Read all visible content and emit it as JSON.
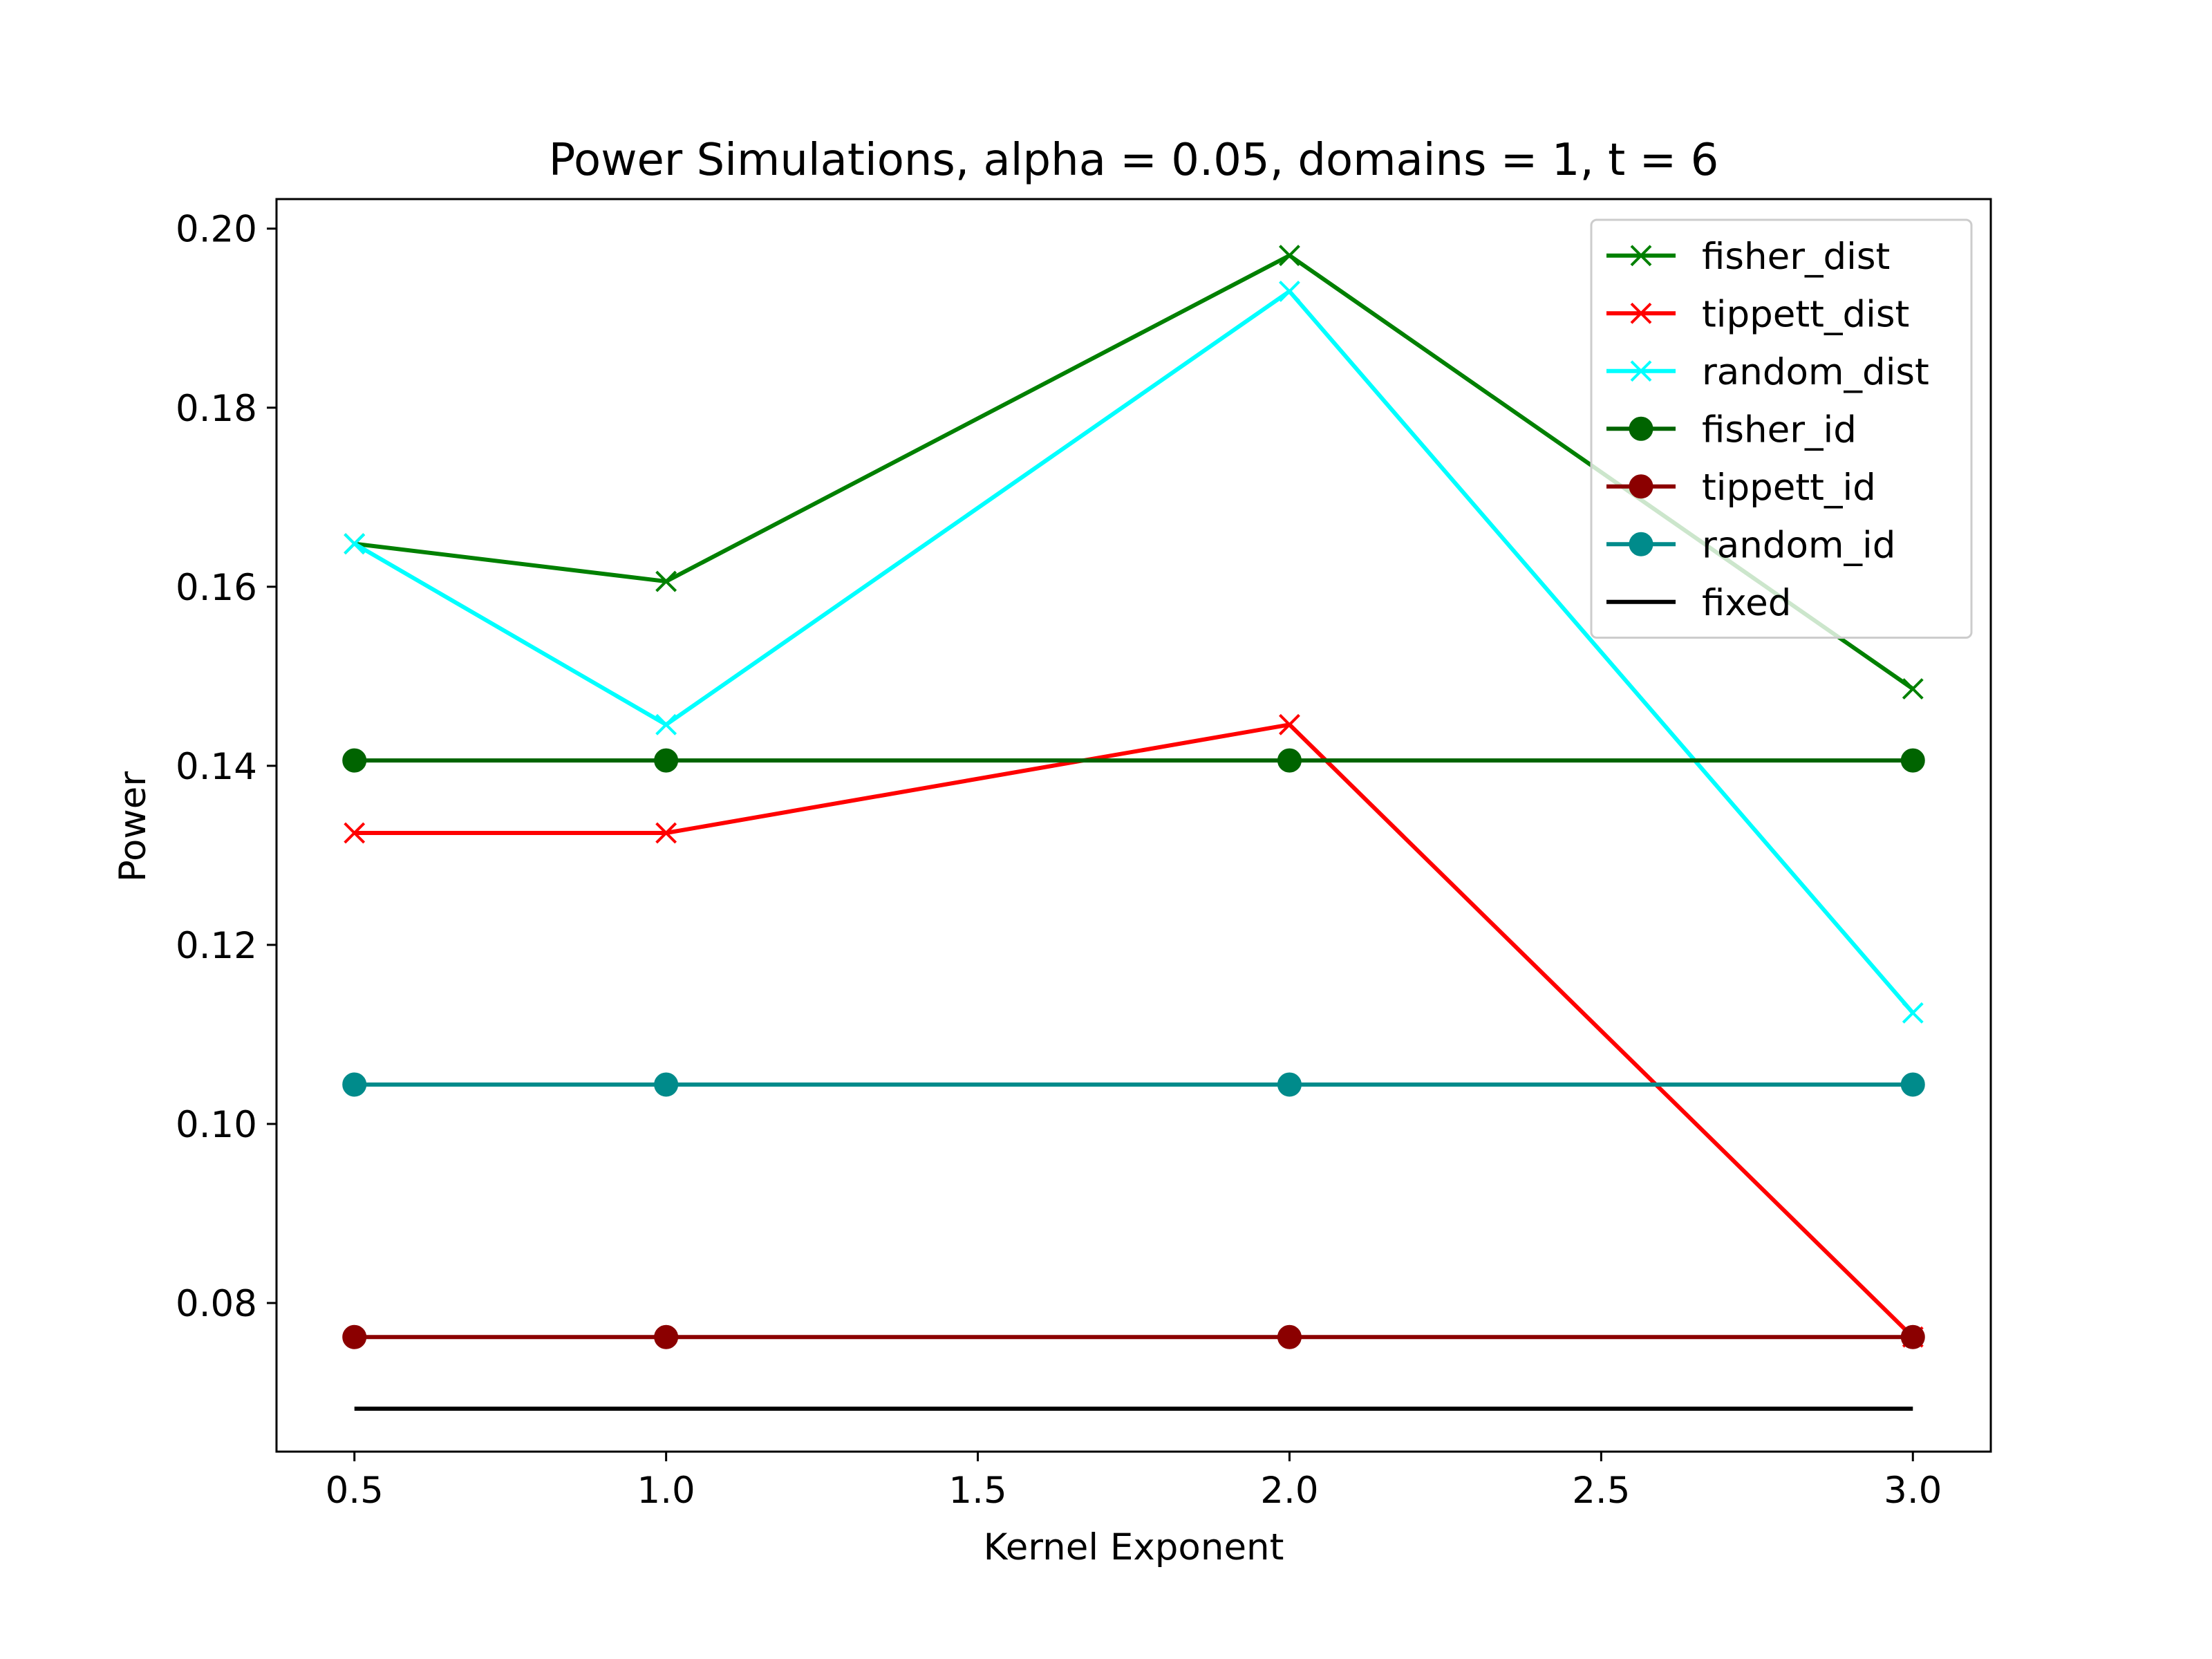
{
  "chart_data": {
    "type": "line",
    "title": "Power Simulations, alpha = 0.05, domains = 1, t = 6",
    "xlabel": "Kernel Exponent",
    "ylabel": "Power",
    "xlim": [
      0.375,
      3.125
    ],
    "ylim": [
      0.0634,
      0.2033
    ],
    "xticks": [
      "0.5",
      "1.0",
      "1.5",
      "2.0",
      "2.5",
      "3.0"
    ],
    "yticks": [
      "0.08",
      "0.10",
      "0.12",
      "0.14",
      "0.16",
      "0.18",
      "0.20"
    ],
    "grid": false,
    "legend_position": "upper right",
    "x": [
      0.5,
      1.0,
      2.0,
      3.0
    ],
    "series": [
      {
        "name": "fisher_dist",
        "values": [
          0.1648,
          0.1606,
          0.197,
          0.1486
        ],
        "color": "#008000",
        "marker": "x"
      },
      {
        "name": "tippett_dist",
        "values": [
          0.1325,
          0.1325,
          0.1446,
          0.0762
        ],
        "color": "#ff0000",
        "marker": "x"
      },
      {
        "name": "random_dist",
        "values": [
          0.1648,
          0.1446,
          0.193,
          0.1124
        ],
        "color": "#00ffff",
        "marker": "x"
      },
      {
        "name": "fisher_id",
        "values": [
          0.1406,
          0.1406,
          0.1406,
          0.1406
        ],
        "color": "#006400",
        "marker": "o"
      },
      {
        "name": "tippett_id",
        "values": [
          0.0762,
          0.0762,
          0.0762,
          0.0762
        ],
        "color": "#8b0000",
        "marker": "o"
      },
      {
        "name": "random_id",
        "values": [
          0.1044,
          0.1044,
          0.1044,
          0.1044
        ],
        "color": "#008b8b",
        "marker": "o"
      },
      {
        "name": "fixed",
        "values": [
          0.0682,
          0.0682,
          0.0682,
          0.0682
        ],
        "color": "#000000",
        "marker": "none"
      }
    ]
  }
}
